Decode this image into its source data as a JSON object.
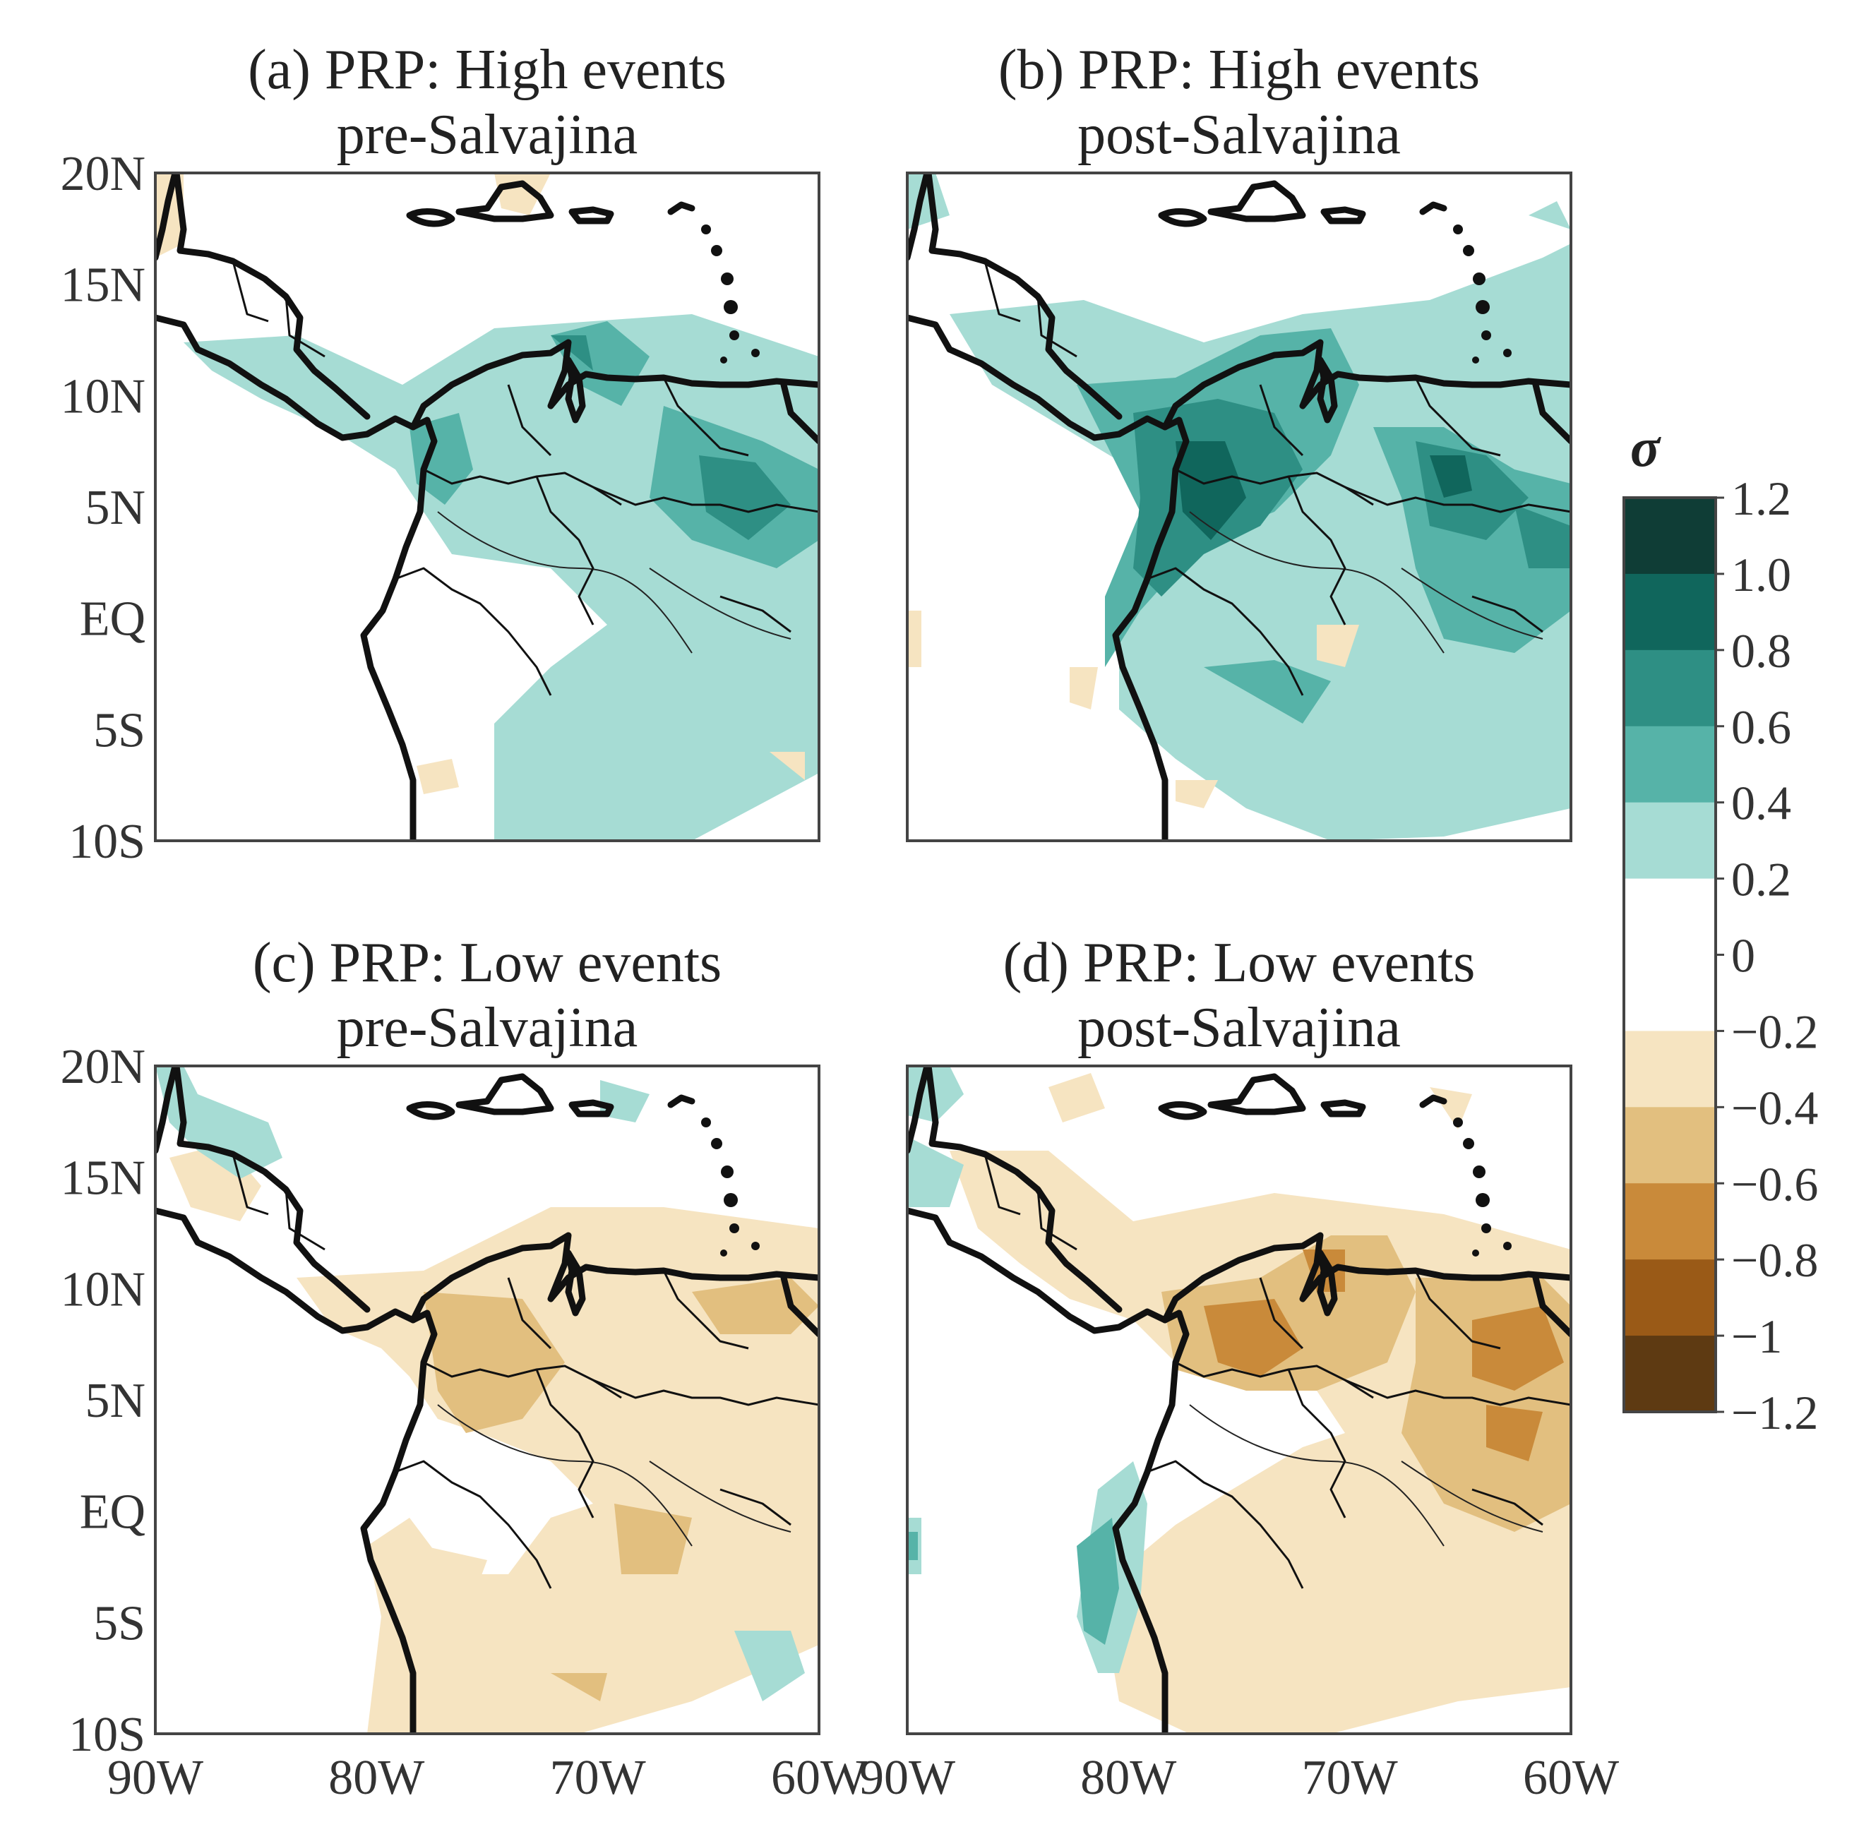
{
  "figure": {
    "panels": [
      {
        "id": "a",
        "title_line1": "(a) PRP: High events",
        "title_line2": "pre-Salvajina"
      },
      {
        "id": "b",
        "title_line1": "(b) PRP: High events",
        "title_line2": "post-Salvajina"
      },
      {
        "id": "c",
        "title_line1": "(c) PRP: Low events",
        "title_line2": "pre-Salvajina"
      },
      {
        "id": "d",
        "title_line1": "(d) PRP: Low events",
        "title_line2": "post-Salvajina"
      }
    ],
    "lat_ticks": [
      "20N",
      "15N",
      "10N",
      "5N",
      "EQ",
      "5S",
      "10S"
    ],
    "lon_ticks": [
      "90W",
      "80W",
      "70W",
      "60W"
    ],
    "colorbar": {
      "title": "σ",
      "ticks": [
        "1.2",
        "1.0",
        "0.8",
        "0.6",
        "0.4",
        "0.2",
        "0",
        "−0.2",
        "−0.4",
        "−0.6",
        "−0.8",
        "−1",
        "−1.2"
      ],
      "colors": [
        "#0f3d36",
        "#10665c",
        "#2e8f84",
        "#56b3a8",
        "#a6dcd4",
        "#ffffff",
        "#ffffff",
        "#f6e4c1",
        "#e2bf7f",
        "#c98a3a",
        "#9a5a17",
        "#5e3a12"
      ]
    }
  }
}
